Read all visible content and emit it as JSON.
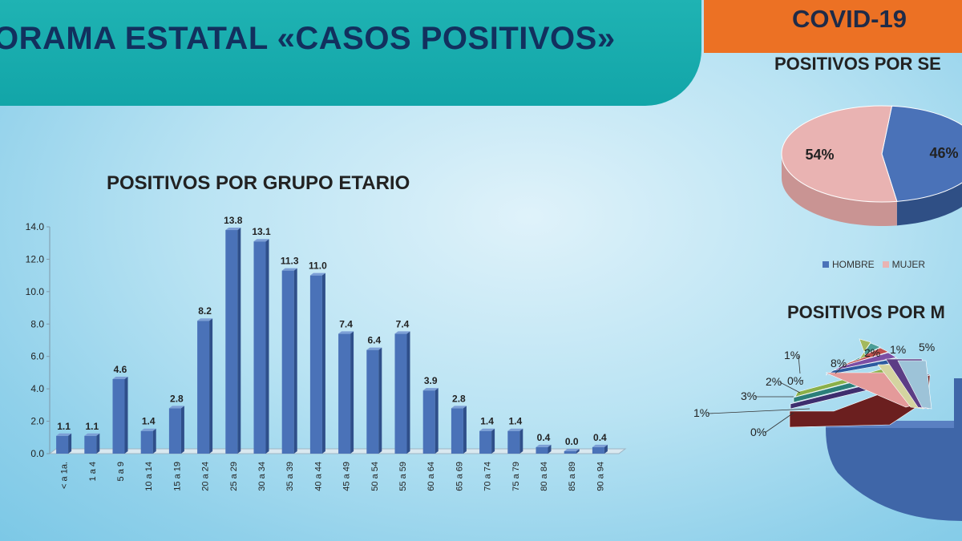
{
  "header": {
    "title": "ORAMA ESTATAL «CASOS POSITIVOS»",
    "tag": "COVID-19"
  },
  "colors": {
    "banner": "#15a9aa",
    "tag": "#ec7124",
    "bar": "#4a72b8",
    "hombre": "#4a72b8",
    "mujer": "#e9b3b2"
  },
  "chart_data": [
    {
      "type": "bar",
      "title": "POSITIVOS POR GRUPO ETARIO",
      "categories": [
        "< a 1a.",
        "1 a 4",
        "5 a 9",
        "10 a 14",
        "15 a 19",
        "20 a 24",
        "25 a 29",
        "30 a 34",
        "35 a 39",
        "40 a 44",
        "45 a 49",
        "50 a 54",
        "55 a 59",
        "60 a 64",
        "65 a 69",
        "70 a 74",
        "75 a 79",
        "80 a 84",
        "85 a 89",
        "90 a 94"
      ],
      "values": [
        1.1,
        1.1,
        4.6,
        1.4,
        2.8,
        8.2,
        13.8,
        13.1,
        11.3,
        11.0,
        7.4,
        6.4,
        7.4,
        3.9,
        2.8,
        1.4,
        1.4,
        0.4,
        0.0,
        0.4
      ],
      "value_labels": [
        "1.1",
        "1.1",
        "4.6",
        "1.4",
        "2.8",
        "8.2",
        "13.8",
        "13.1",
        "11.3",
        "11.0",
        "7.4",
        "6.4",
        "7.4",
        "3.9",
        "2.8",
        "1.4",
        "1.4",
        "0.4",
        "0.0",
        "0.4"
      ],
      "ylim": [
        0,
        14
      ],
      "yticks": [
        "0.0",
        "2.0",
        "4.0",
        "6.0",
        "8.0",
        "10.0",
        "12.0",
        "14.0"
      ],
      "grid": false
    },
    {
      "type": "pie",
      "title": "POSITIVOS POR SE",
      "labels": [
        "HOMBRE",
        "MUJER"
      ],
      "values": [
        46,
        54
      ],
      "value_labels": [
        "46%",
        "54%"
      ],
      "legend": "bottom"
    },
    {
      "type": "pie",
      "title": "POSITIVOS POR M",
      "value_labels": [
        "5%",
        "1%",
        "2%",
        "8%",
        "1%",
        "0%",
        "2%",
        "3%",
        "1%",
        "0%"
      ]
    }
  ]
}
